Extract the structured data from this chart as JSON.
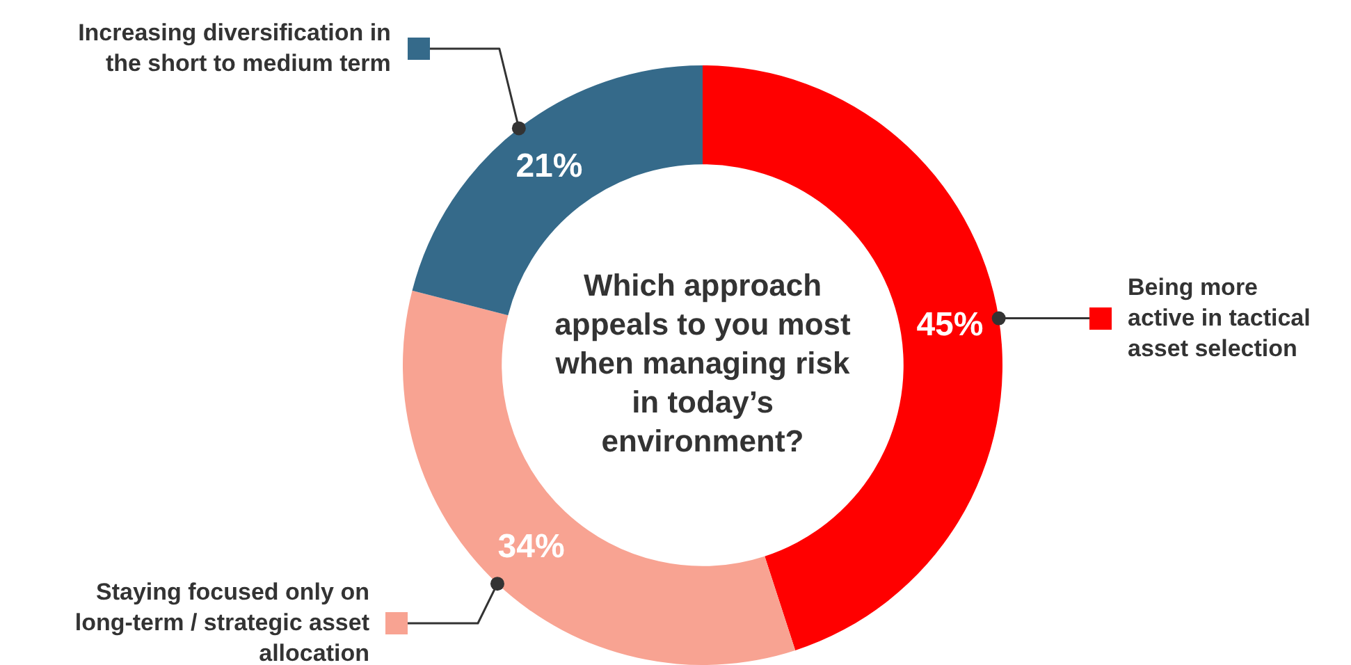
{
  "chart_data": {
    "type": "donut",
    "title": "Which approach appeals to you most when managing risk in today’s environment?",
    "categories": [
      "Being more active in tactical asset selection",
      "Staying focused only on long-term / strategic asset allocation",
      "Increasing diversification in the short to medium term"
    ],
    "values": [
      45,
      34,
      21
    ],
    "colors": [
      "#ff0000",
      "#f8a392",
      "#356a8a"
    ],
    "value_labels": [
      "45%",
      "34%",
      "21%"
    ],
    "legend": "left"
  }
}
